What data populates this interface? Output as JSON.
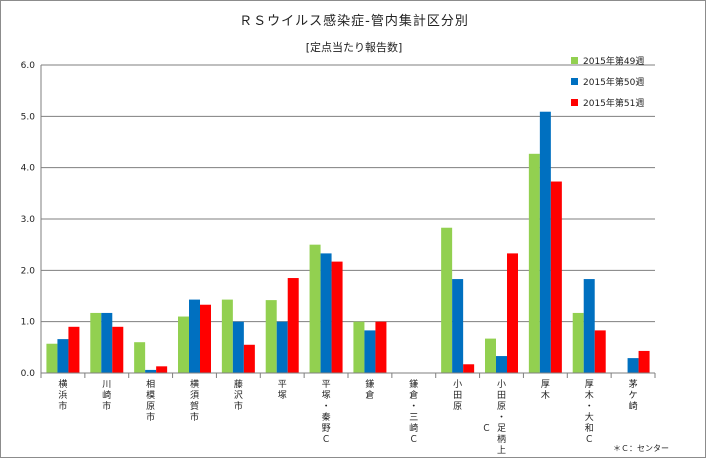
{
  "chart_data": {
    "type": "bar",
    "title": "ＲＳウイルス感染症-管内集計区分別",
    "subtitle": "[定点当たり報告数]",
    "xlabel": "",
    "ylabel": "",
    "ylim": [
      0,
      6
    ],
    "yticks": [
      "0.0",
      "1.0",
      "2.0",
      "3.0",
      "4.0",
      "5.0",
      "6.0"
    ],
    "grid": true,
    "legend_position": "top-right",
    "categories": [
      "横浜市",
      "川崎市",
      "相模原市",
      "横須賀市",
      "藤沢市",
      "平塚",
      "平塚・秦野Ｃ",
      "鎌倉",
      "鎌倉・三崎Ｃ",
      "小田原",
      "小田原・足柄上Ｃ",
      "厚木",
      "厚木・大和Ｃ",
      "茅ケ崎"
    ],
    "category_label_lines": [
      [
        "横",
        "浜",
        "市"
      ],
      [
        "川",
        "崎",
        "市"
      ],
      [
        "相",
        "模",
        "原",
        "市"
      ],
      [
        "横",
        "須",
        "賀",
        "市"
      ],
      [
        "藤",
        "沢",
        "市"
      ],
      [
        "平",
        "塚"
      ],
      [
        "平",
        "塚",
        "・",
        "秦",
        "野",
        "Ｃ"
      ],
      [
        "鎌",
        "倉"
      ],
      [
        "鎌",
        "倉",
        "・",
        "三",
        "崎",
        "Ｃ"
      ],
      [
        "小",
        "田",
        "原"
      ],
      [
        "小",
        "田",
        "原",
        "・",
        "足",
        "柄",
        "上"
      ],
      [
        "厚",
        "木"
      ],
      [
        "厚",
        "木",
        "・",
        "大",
        "和",
        "Ｃ"
      ],
      [
        "茅",
        "ケ",
        "崎"
      ]
    ],
    "category_label_side_marks": {
      "10": "Ｃ"
    },
    "series": [
      {
        "name": "2015年第49週",
        "color": "#92d050",
        "values": [
          0.57,
          1.17,
          0.6,
          1.1,
          1.43,
          1.42,
          2.5,
          1.0,
          0,
          2.83,
          0.67,
          4.27,
          1.17,
          0
        ]
      },
      {
        "name": "2015年第50週",
        "color": "#0070c0",
        "values": [
          0.66,
          1.17,
          0.06,
          1.43,
          1.0,
          1.0,
          2.33,
          0.83,
          0,
          1.83,
          0.33,
          5.09,
          1.83,
          0.29
        ]
      },
      {
        "name": "2015年第51週",
        "color": "#ff0000",
        "values": [
          0.9,
          0.9,
          0.13,
          1.33,
          0.55,
          1.85,
          2.17,
          1.0,
          0,
          0.17,
          2.33,
          3.73,
          0.83,
          0.43
        ]
      }
    ],
    "footnote": "＊Ｃ：センター"
  }
}
